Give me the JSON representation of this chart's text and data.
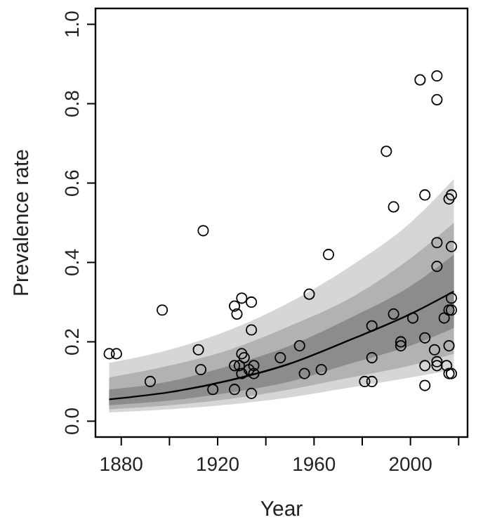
{
  "chart_data": {
    "type": "scatter",
    "xlabel": "Year",
    "ylabel": "Prevalence rate",
    "xlim": [
      1869.3,
      2023.7
    ],
    "ylim": [
      -0.04,
      1.04
    ],
    "xticks": [
      1880,
      {
        "value": 1900,
        "label": null
      },
      1920,
      {
        "value": 1940,
        "label": null
      },
      1960,
      {
        "value": 1980,
        "label": null
      },
      2000,
      {
        "value": 2020,
        "label": null
      }
    ],
    "yticks": [
      {
        "value": 0,
        "label": "0.0"
      },
      {
        "value": 0.2,
        "label": "0.2"
      },
      {
        "value": 0.4,
        "label": "0.4"
      },
      {
        "value": 0.6,
        "label": "0.6"
      },
      {
        "value": 0.8,
        "label": "0.8"
      },
      {
        "value": 1,
        "label": "1.0"
      }
    ],
    "grid": false,
    "series": [
      {
        "type": "line",
        "color": "#000000",
        "line_style": "solid",
        "x": [
          1875,
          1900,
          1925,
          1950,
          1975,
          2000,
          2018
        ],
        "values": [
          0.055,
          0.073,
          0.103,
          0.145,
          0.205,
          0.27,
          0.327
        ],
        "lower": [
          0.022,
          0.03,
          0.042,
          0.06,
          0.085,
          0.11,
          0.13
        ],
        "upper": [
          0.147,
          0.18,
          0.23,
          0.3,
          0.39,
          0.5,
          0.61
        ]
      },
      {
        "type": "line",
        "color": "#b2b2b2",
        "x": [
          1875,
          1900,
          1925,
          1950,
          1975,
          2000,
          2018
        ],
        "values": [
          null,
          null,
          null,
          null,
          null,
          null,
          null
        ],
        "lower": [
          0.03,
          0.04,
          0.056,
          0.08,
          0.11,
          0.14,
          0.17
        ],
        "upper": [
          0.11,
          0.14,
          0.18,
          0.24,
          0.31,
          0.41,
          0.5
        ]
      },
      {
        "type": "line",
        "color": "#8c8c8c",
        "x": [
          1875,
          1900,
          1925,
          1950,
          1975,
          2000,
          2018
        ],
        "values": [
          null,
          null,
          null,
          null,
          null,
          null,
          null
        ],
        "lower": [
          0.04,
          0.052,
          0.072,
          0.1,
          0.145,
          0.19,
          0.235
        ],
        "upper": [
          0.08,
          0.1,
          0.14,
          0.19,
          0.26,
          0.34,
          0.42
        ]
      },
      {
        "color": "#000000",
        "marker": "circle",
        "x": [
          1875,
          1878,
          1892,
          1897,
          1912,
          1913,
          1914,
          1918,
          1927,
          1927,
          1927,
          1928,
          1930,
          1929,
          1930,
          1930,
          1931,
          1933,
          1934,
          1934,
          1934,
          1935,
          1935,
          1946,
          1954,
          1956,
          1958,
          1963,
          1966,
          1981,
          1984,
          1984,
          1984,
          1990,
          1993,
          1993,
          1996,
          1996,
          2001,
          2004,
          2006,
          2006,
          2006,
          2006,
          2010,
          2011,
          2011,
          2011,
          2011,
          2011,
          2011,
          2014,
          2015,
          2016,
          2016,
          2016,
          2016,
          2017,
          2017,
          2017,
          2017,
          2017
        ],
        "values": [
          0.17,
          0.17,
          0.1,
          0.28,
          0.18,
          0.13,
          0.48,
          0.08,
          0.14,
          0.08,
          0.29,
          0.27,
          0.31,
          0.14,
          0.17,
          0.12,
          0.16,
          0.13,
          0.3,
          0.23,
          0.07,
          0.14,
          0.12,
          0.16,
          0.19,
          0.12,
          0.32,
          0.13,
          0.42,
          0.1,
          0.1,
          0.24,
          0.16,
          0.68,
          0.54,
          0.27,
          0.2,
          0.19,
          0.26,
          0.86,
          0.57,
          0.21,
          0.14,
          0.09,
          0.18,
          0.87,
          0.81,
          0.45,
          0.39,
          0.15,
          0.14,
          0.26,
          0.14,
          0.12,
          0.56,
          0.28,
          0.19,
          0.57,
          0.44,
          0.31,
          0.28,
          0.12
        ]
      }
    ]
  }
}
